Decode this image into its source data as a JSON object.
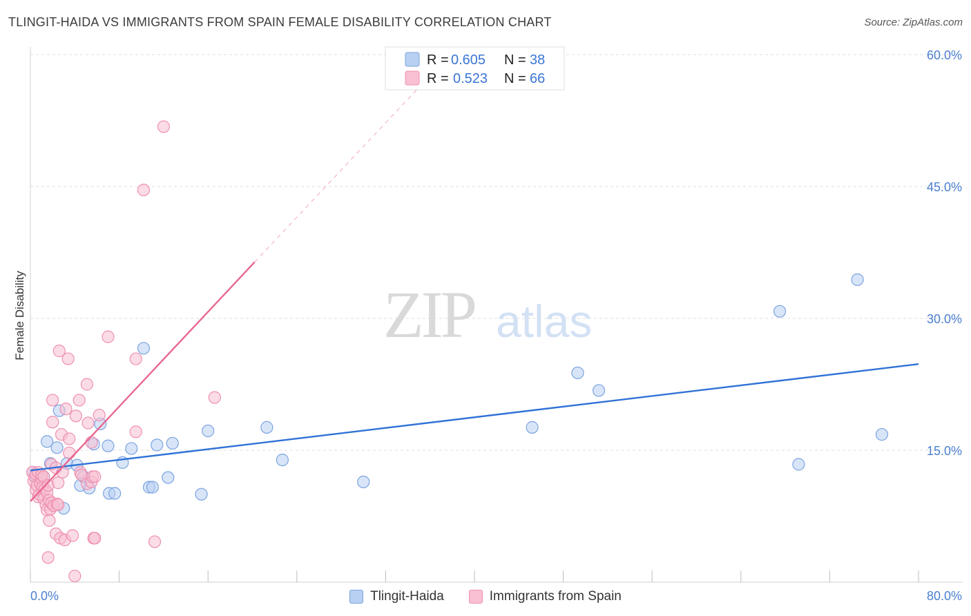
{
  "header": {
    "title": "TLINGIT-HAIDA VS IMMIGRANTS FROM SPAIN FEMALE DISABILITY CORRELATION CHART",
    "source": "Source: ZipAtlas.com"
  },
  "watermark": {
    "zip": "ZIP",
    "atlas": "atlas"
  },
  "colors": {
    "blue_fill": "#b8d0f2",
    "blue_stroke": "#7aa3e0",
    "blue_line": "#2f72d6",
    "pink_fill": "#f8c0d2",
    "pink_stroke": "#ee8fb0",
    "pink_line": "#e8678f",
    "tick_text": "#4a7fd0",
    "grid": "#dddddd"
  },
  "stats_legend": [
    {
      "r_label": "R =",
      "r_value": "0.605",
      "n_label": "N =",
      "n_value": "38"
    },
    {
      "r_label": "R =",
      "r_value": "0.523",
      "n_label": "N =",
      "n_value": "66"
    }
  ],
  "chart_data": {
    "type": "scatter",
    "title": "TLINGIT-HAIDA VS IMMIGRANTS FROM SPAIN FEMALE DISABILITY CORRELATION CHART",
    "xlabel": "",
    "ylabel": "Female Disability",
    "xlim": [
      0,
      80
    ],
    "ylim": [
      0,
      60
    ],
    "x_tick_labels": [
      "0.0%",
      "80.0%"
    ],
    "y_ticks": [
      15,
      30,
      45,
      60
    ],
    "y_tick_labels": [
      "15.0%",
      "30.0%",
      "45.0%",
      "60.0%"
    ],
    "grid": true,
    "legend": [
      "Tlingit-Haida",
      "Immigrants from Spain"
    ],
    "series": [
      {
        "name": "Tlingit-Haida",
        "color": "#b8d0f2",
        "points": [
          [
            0.2,
            12.5
          ],
          [
            0.5,
            12.0
          ],
          [
            1.2,
            12.0
          ],
          [
            1.5,
            16.0
          ],
          [
            1.8,
            13.5
          ],
          [
            2.4,
            15.3
          ],
          [
            2.6,
            19.5
          ],
          [
            3.0,
            8.4
          ],
          [
            3.3,
            13.5
          ],
          [
            4.2,
            13.3
          ],
          [
            4.5,
            11.0
          ],
          [
            4.8,
            12.0
          ],
          [
            5.3,
            10.7
          ],
          [
            5.7,
            15.7
          ],
          [
            6.3,
            18.0
          ],
          [
            7.0,
            15.5
          ],
          [
            7.1,
            10.1
          ],
          [
            7.6,
            10.1
          ],
          [
            8.3,
            13.6
          ],
          [
            9.1,
            15.2
          ],
          [
            10.2,
            26.6
          ],
          [
            10.7,
            10.8
          ],
          [
            11.0,
            10.8
          ],
          [
            11.4,
            15.6
          ],
          [
            12.4,
            11.9
          ],
          [
            12.8,
            15.8
          ],
          [
            15.4,
            10.0
          ],
          [
            16.0,
            17.2
          ],
          [
            21.3,
            17.6
          ],
          [
            22.7,
            13.9
          ],
          [
            30.0,
            11.4
          ],
          [
            45.2,
            17.6
          ],
          [
            49.3,
            23.8
          ],
          [
            51.2,
            21.8
          ],
          [
            67.5,
            30.8
          ],
          [
            69.2,
            13.4
          ],
          [
            74.5,
            34.4
          ],
          [
            76.7,
            16.8
          ]
        ],
        "trend": {
          "x": [
            0,
            80
          ],
          "y": [
            12.7,
            24.8
          ]
        }
      },
      {
        "name": "Immigrants from Spain",
        "color": "#f8c0d2",
        "points": [
          [
            0.2,
            12.5
          ],
          [
            0.3,
            11.5
          ],
          [
            0.4,
            12.0
          ],
          [
            0.5,
            10.5
          ],
          [
            0.5,
            12.3
          ],
          [
            0.6,
            11.0
          ],
          [
            0.7,
            12.5
          ],
          [
            0.7,
            9.7
          ],
          [
            0.8,
            10.0
          ],
          [
            0.9,
            11.2
          ],
          [
            1.0,
            11.8
          ],
          [
            1.0,
            12.2
          ],
          [
            1.1,
            10.8
          ],
          [
            1.2,
            12.0
          ],
          [
            1.2,
            9.5
          ],
          [
            1.3,
            10.6
          ],
          [
            1.4,
            8.8
          ],
          [
            1.5,
            10.2
          ],
          [
            1.5,
            8.2
          ],
          [
            1.6,
            11.0
          ],
          [
            1.6,
            2.8
          ],
          [
            1.7,
            9.3
          ],
          [
            1.7,
            7.0
          ],
          [
            1.8,
            8.3
          ],
          [
            1.9,
            13.4
          ],
          [
            1.9,
            9.0
          ],
          [
            2.0,
            18.2
          ],
          [
            2.0,
            20.7
          ],
          [
            2.1,
            8.7
          ],
          [
            2.3,
            5.5
          ],
          [
            2.3,
            13.0
          ],
          [
            2.4,
            8.9
          ],
          [
            2.5,
            11.3
          ],
          [
            2.5,
            8.8
          ],
          [
            2.6,
            26.3
          ],
          [
            2.7,
            5.0
          ],
          [
            2.8,
            16.8
          ],
          [
            2.9,
            12.5
          ],
          [
            3.1,
            4.8
          ],
          [
            3.2,
            19.7
          ],
          [
            3.4,
            25.4
          ],
          [
            3.5,
            14.7
          ],
          [
            3.5,
            16.3
          ],
          [
            3.8,
            5.3
          ],
          [
            4.0,
            0.7
          ],
          [
            4.1,
            18.9
          ],
          [
            4.4,
            20.7
          ],
          [
            4.5,
            12.5
          ],
          [
            4.6,
            12.2
          ],
          [
            5.1,
            22.5
          ],
          [
            5.2,
            18.1
          ],
          [
            5.1,
            11.2
          ],
          [
            5.5,
            15.9
          ],
          [
            5.5,
            11.4
          ],
          [
            5.7,
            5.0
          ],
          [
            5.8,
            5.0
          ],
          [
            5.6,
            12.0
          ],
          [
            5.8,
            12.0
          ],
          [
            6.2,
            19.0
          ],
          [
            7.0,
            27.9
          ],
          [
            9.5,
            17.1
          ],
          [
            9.5,
            25.4
          ],
          [
            10.2,
            44.6
          ],
          [
            11.2,
            4.6
          ],
          [
            12.0,
            51.8
          ],
          [
            16.6,
            21.0
          ]
        ],
        "trend": {
          "x": [
            0,
            20.2
          ],
          "y": [
            9.2,
            36.4
          ]
        },
        "trend_extension": {
          "x": [
            20.2,
            34.8
          ],
          "y": [
            36.4,
            56.0
          ]
        }
      }
    ]
  },
  "bottom_legend": [
    {
      "label": "Tlingit-Haida"
    },
    {
      "label": "Immigrants from Spain"
    }
  ]
}
